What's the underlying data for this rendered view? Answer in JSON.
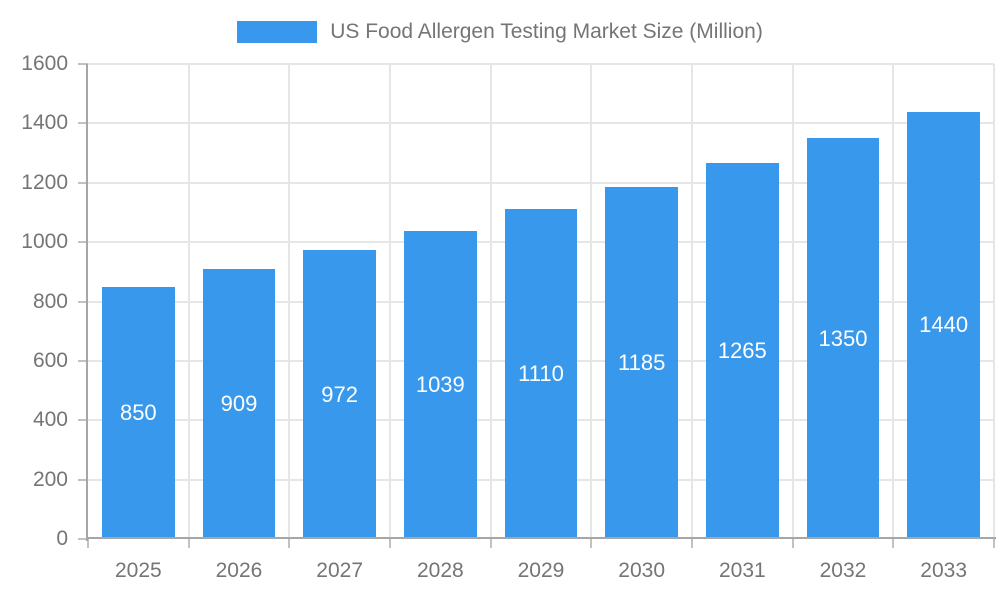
{
  "chart_data": {
    "type": "bar",
    "title": "US Food Allergen Testing Market Size (Million)",
    "categories": [
      "2025",
      "2026",
      "2027",
      "2028",
      "2029",
      "2030",
      "2031",
      "2032",
      "2033"
    ],
    "values": [
      850,
      909,
      972,
      1039,
      1110,
      1185,
      1265,
      1350,
      1440
    ],
    "bar_value_labels": [
      "850",
      "909",
      "972",
      "1039",
      "1110",
      "1185",
      "1265",
      "1350",
      "1440"
    ],
    "xlabel": "",
    "ylabel": "",
    "ylim": [
      0,
      1600
    ],
    "yticks": [
      0,
      200,
      400,
      600,
      800,
      1000,
      1200,
      1400,
      1600
    ],
    "grid": true,
    "legend_position": "top",
    "colors": {
      "bar": "#3898EC",
      "bar_label": "#FFFFFF",
      "axis_text": "#757575",
      "grid_line": "#E6E6E6",
      "axis_line": "#A6A6A6",
      "tick": "#C2C2C2"
    }
  }
}
